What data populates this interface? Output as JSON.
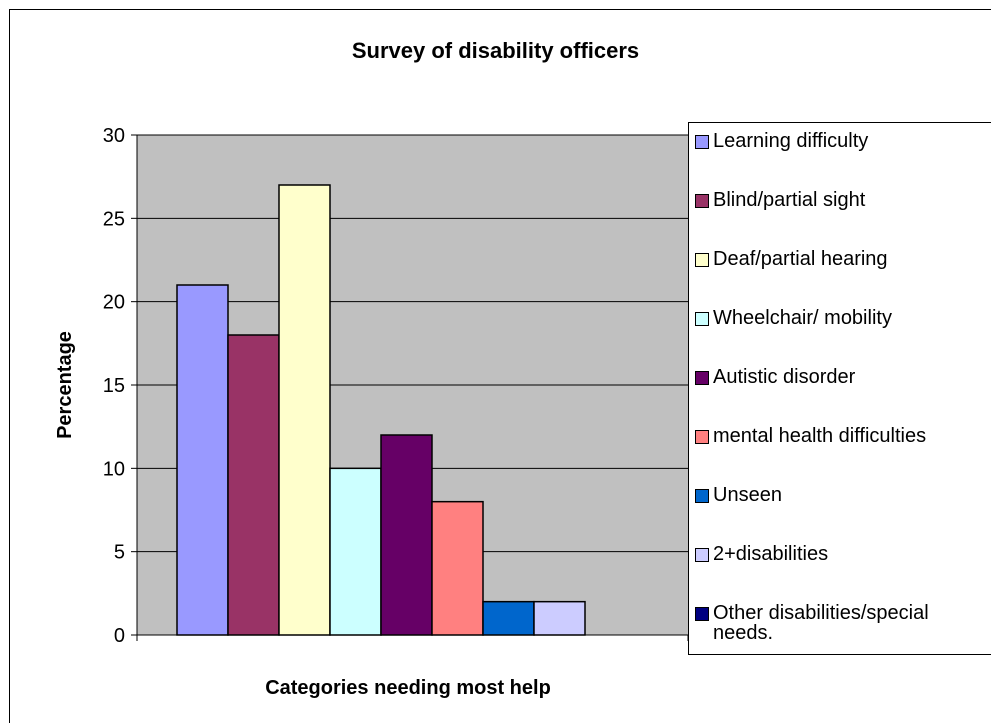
{
  "chart_data": {
    "type": "bar",
    "title": "Survey of disability officers",
    "xlabel": "Categories needing most help",
    "ylabel": "Percentage",
    "ylim": [
      0,
      30
    ],
    "yticks": [
      "0",
      "5",
      "10",
      "15",
      "20",
      "25",
      "30"
    ],
    "grid": true,
    "legend_position": "right",
    "plot_background": "#c0c0c0",
    "series": [
      {
        "name": "Learning difficulty",
        "value": 21,
        "color": "#9999ff"
      },
      {
        "name": "Blind/partial sight",
        "value": 18,
        "color": "#993366"
      },
      {
        "name": "Deaf/partial hearing",
        "value": 27,
        "color": "#ffffcc"
      },
      {
        "name": "Wheelchair/ mobility",
        "value": 10,
        "color": "#ccffff"
      },
      {
        "name": "Autistic disorder",
        "value": 12,
        "color": "#660066"
      },
      {
        "name": "mental health difficulties",
        "value": 8,
        "color": "#ff8080"
      },
      {
        "name": "Unseen",
        "value": 2,
        "color": "#0066cc"
      },
      {
        "name": "2+disabilities",
        "value": 2,
        "color": "#ccccff"
      },
      {
        "name": "Other disabilities/special\nneeds.",
        "value": null,
        "color": "#000080"
      }
    ]
  }
}
